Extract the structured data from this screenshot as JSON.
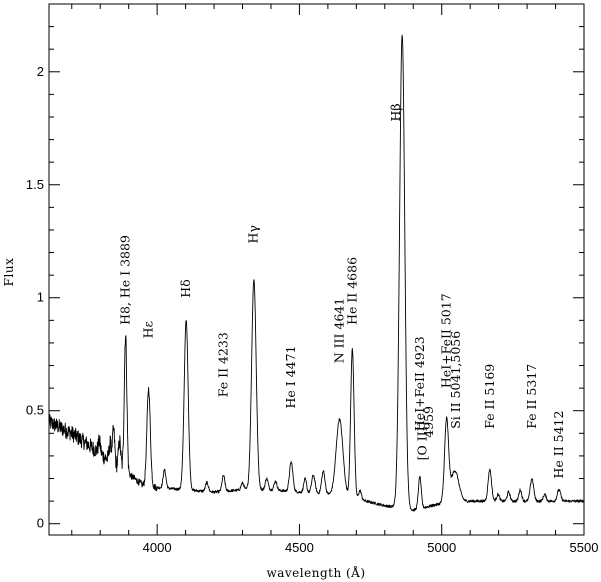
{
  "chart_data": {
    "type": "line",
    "xlabel": "wavelength (Å)",
    "ylabel": "Flux",
    "xlim": [
      3620,
      5500
    ],
    "ylim": [
      -0.05,
      2.3
    ],
    "x_ticks": [
      4000,
      4500,
      5000,
      5500
    ],
    "x_tick_labels": [
      "4000",
      "4500",
      "5000",
      "5500"
    ],
    "y_ticks": [
      0,
      0.5,
      1,
      1.5,
      2
    ],
    "y_tick_labels": [
      "0",
      "0.5",
      "1",
      "1.5",
      "2"
    ],
    "grid": false,
    "series": [
      {
        "continuum": [
          [
            3620,
            0.45
          ],
          [
            3700,
            0.4
          ],
          [
            3780,
            0.33
          ],
          [
            3850,
            0.26
          ],
          [
            3900,
            0.22
          ],
          [
            3950,
            0.17
          ],
          [
            4000,
            0.16
          ],
          [
            4100,
            0.15
          ],
          [
            4200,
            0.14
          ],
          [
            4300,
            0.15
          ],
          [
            4400,
            0.15
          ],
          [
            4500,
            0.14
          ],
          [
            4600,
            0.13
          ],
          [
            4700,
            0.11
          ],
          [
            4800,
            0.08
          ],
          [
            4850,
            0.07
          ],
          [
            4900,
            0.06
          ],
          [
            5000,
            0.09
          ],
          [
            5100,
            0.1
          ],
          [
            5200,
            0.1
          ],
          [
            5300,
            0.1
          ],
          [
            5400,
            0.1
          ],
          [
            5500,
            0.1
          ]
        ],
        "lines": [
          {
            "x": 3797,
            "h": 0.05,
            "w": 4
          },
          {
            "x": 3835,
            "h": 0.08,
            "w": 4
          },
          {
            "x": 3847,
            "h": 0.15,
            "w": 4
          },
          {
            "x": 3868,
            "h": 0.12,
            "w": 4
          },
          {
            "x": 3889,
            "h": 0.61,
            "w": 4.5
          },
          {
            "x": 3970,
            "h": 0.43,
            "w": 6
          },
          {
            "x": 4026,
            "h": 0.08,
            "w": 5
          },
          {
            "x": 4102,
            "h": 0.75,
            "w": 7
          },
          {
            "x": 4175,
            "h": 0.04,
            "w": 5
          },
          {
            "x": 4233,
            "h": 0.07,
            "w": 5
          },
          {
            "x": 4300,
            "h": 0.03,
            "w": 5
          },
          {
            "x": 4340,
            "h": 0.93,
            "w": 8
          },
          {
            "x": 4385,
            "h": 0.05,
            "w": 5
          },
          {
            "x": 4416,
            "h": 0.04,
            "w": 5
          },
          {
            "x": 4471,
            "h": 0.13,
            "w": 6
          },
          {
            "x": 4520,
            "h": 0.06,
            "w": 5
          },
          {
            "x": 4549,
            "h": 0.08,
            "w": 6
          },
          {
            "x": 4584,
            "h": 0.1,
            "w": 6
          },
          {
            "x": 4641,
            "h": 0.34,
            "w": 12
          },
          {
            "x": 4686,
            "h": 0.66,
            "w": 6
          },
          {
            "x": 4713,
            "h": 0.04,
            "w": 5
          },
          {
            "x": 4861,
            "h": 2.1,
            "w": 9
          },
          {
            "x": 4923,
            "h": 0.14,
            "w": 5
          },
          {
            "x": 5017,
            "h": 0.36,
            "w": 7
          },
          {
            "x": 5046,
            "h": 0.14,
            "w": 14
          },
          {
            "x": 5169,
            "h": 0.14,
            "w": 6
          },
          {
            "x": 5198,
            "h": 0.03,
            "w": 5
          },
          {
            "x": 5235,
            "h": 0.04,
            "w": 5
          },
          {
            "x": 5276,
            "h": 0.05,
            "w": 5
          },
          {
            "x": 5317,
            "h": 0.1,
            "w": 6
          },
          {
            "x": 5362,
            "h": 0.03,
            "w": 5
          },
          {
            "x": 5412,
            "h": 0.05,
            "w": 6
          }
        ]
      }
    ],
    "annotations": [
      {
        "text": "H8, He I 3889",
        "x": 3889,
        "y": 0.88
      },
      {
        "text": "Hε",
        "x": 3970,
        "y": 0.82
      },
      {
        "text": "Hδ",
        "x": 4102,
        "y": 1.0
      },
      {
        "text": "Fe II 4233",
        "x": 4233,
        "y": 0.56
      },
      {
        "text": "Hγ",
        "x": 4338,
        "y": 1.24
      },
      {
        "text": "He I 4471",
        "x": 4471,
        "y": 0.51
      },
      {
        "text": "N III 4641",
        "x": 4641,
        "y": 0.71
      },
      {
        "text": "He II 4686",
        "x": 4686,
        "y": 0.88
      },
      {
        "text": "Hβ",
        "x": 4840,
        "y": 1.78
      },
      {
        "text": "HeI+FeII 4923",
        "x": 4923,
        "y": 0.41
      },
      {
        "text": "4959",
        "x": 4955,
        "y": 0.38
      },
      {
        "text": "[O III]",
        "x": 4933,
        "y": 0.28
      },
      {
        "text": "HeI+FeII 5017",
        "x": 5017,
        "y": 0.6
      },
      {
        "text": "Si II 5041,5056",
        "x": 5050,
        "y": 0.42
      },
      {
        "text": "Fe II 5169",
        "x": 5169,
        "y": 0.42
      },
      {
        "text": "Fe II 5317",
        "x": 5317,
        "y": 0.42
      },
      {
        "text": "He II 5412",
        "x": 5412,
        "y": 0.2
      }
    ]
  }
}
